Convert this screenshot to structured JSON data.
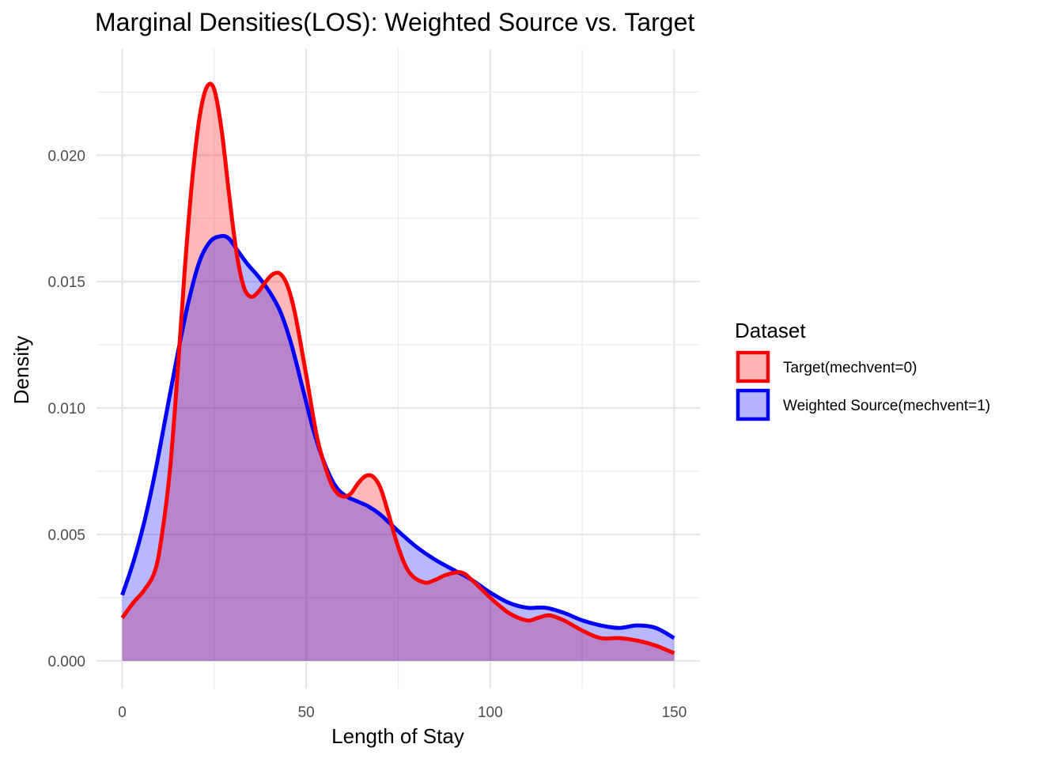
{
  "chart_data": {
    "type": "area",
    "title": "Marginal Densities(LOS): Weighted Source vs. Target",
    "xlabel": "Length of Stay",
    "ylabel": "Density",
    "xlim": [
      -7,
      157
    ],
    "ylim": [
      -0.0011,
      0.0242
    ],
    "x_ticks": [
      0,
      50,
      100,
      150
    ],
    "x_tick_labels": [
      "0",
      "50",
      "100",
      "150"
    ],
    "y_ticks": [
      0.0,
      0.005,
      0.01,
      0.015,
      0.02
    ],
    "y_tick_labels": [
      "0.000",
      "0.005",
      "0.010",
      "0.015",
      "0.020"
    ],
    "grid": true,
    "legend": {
      "title": "Dataset",
      "placement": "right"
    },
    "series": [
      {
        "name": "Target(mechvent=0)",
        "color": "#ff0000",
        "fill": "#ffb3b3",
        "x": [
          0,
          3,
          6,
          9,
          11,
          13,
          15,
          17,
          19,
          21,
          23,
          25,
          27,
          29,
          31,
          33,
          35,
          37,
          39,
          41,
          43,
          45,
          47,
          50,
          53,
          56,
          58,
          60,
          62,
          64,
          66,
          68,
          70,
          72,
          75,
          78,
          82,
          85,
          88,
          92,
          95,
          100,
          105,
          110,
          113,
          116,
          120,
          125,
          130,
          135,
          140,
          145,
          150
        ],
        "y": [
          0.0017,
          0.0023,
          0.0028,
          0.0036,
          0.0052,
          0.0076,
          0.0113,
          0.0155,
          0.019,
          0.0215,
          0.0227,
          0.0226,
          0.021,
          0.0185,
          0.0162,
          0.0148,
          0.0144,
          0.0146,
          0.015,
          0.0153,
          0.0153,
          0.0148,
          0.0137,
          0.0113,
          0.0088,
          0.0073,
          0.0067,
          0.0065,
          0.0066,
          0.007,
          0.0073,
          0.0073,
          0.0069,
          0.006,
          0.0045,
          0.0035,
          0.0031,
          0.0032,
          0.0034,
          0.0035,
          0.0032,
          0.0025,
          0.0019,
          0.0016,
          0.0017,
          0.0018,
          0.0016,
          0.0012,
          0.0009,
          0.0009,
          0.0008,
          0.0006,
          0.0003
        ]
      },
      {
        "name": "Weighted Source(mechvent=1)",
        "color": "#0000ff",
        "fill": "#b3b3ff",
        "x": [
          0,
          3,
          6,
          9,
          12,
          15,
          18,
          21,
          24,
          27,
          29,
          31,
          34,
          37,
          40,
          43,
          46,
          49,
          52,
          55,
          58,
          61,
          64,
          67,
          70,
          73,
          76,
          80,
          85,
          90,
          95,
          100,
          105,
          110,
          115,
          120,
          125,
          130,
          135,
          140,
          145,
          150
        ],
        "y": [
          0.0026,
          0.0039,
          0.0055,
          0.0075,
          0.0098,
          0.0121,
          0.0142,
          0.0158,
          0.0166,
          0.0168,
          0.0167,
          0.0163,
          0.0157,
          0.0152,
          0.0146,
          0.0138,
          0.0125,
          0.0108,
          0.0091,
          0.0078,
          0.0069,
          0.0065,
          0.0063,
          0.0061,
          0.0058,
          0.0054,
          0.005,
          0.0045,
          0.004,
          0.0036,
          0.0032,
          0.0027,
          0.0023,
          0.0021,
          0.0021,
          0.0019,
          0.0016,
          0.0014,
          0.0013,
          0.0014,
          0.0013,
          0.0009
        ]
      }
    ]
  }
}
